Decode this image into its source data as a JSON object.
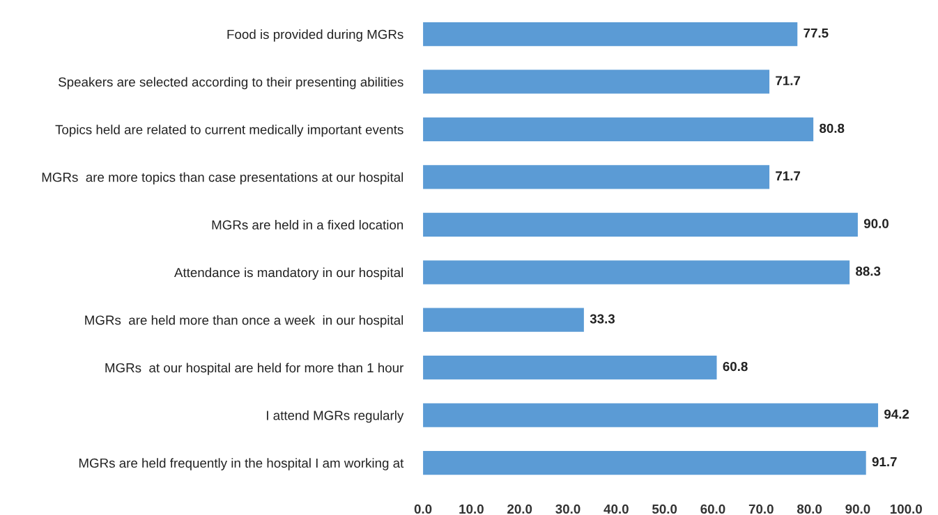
{
  "chart_data": {
    "type": "bar",
    "orientation": "horizontal",
    "categories": [
      "Food is provided during MGRs",
      "Speakers are selected according to their presenting abilities",
      "Topics held are related to current medically important events",
      "MGRs  are more topics than case presentations at our hospital",
      "MGRs are held in a fixed location",
      "Attendance is mandatory in our hospital",
      "MGRs  are held more than once a week  in our hospital",
      "MGRs  at our hospital are held for more than 1 hour",
      "I attend MGRs regularly",
      "MGRs are held frequently in the hospital I am working at"
    ],
    "values": [
      77.5,
      71.7,
      80.8,
      71.7,
      90.0,
      88.3,
      33.3,
      60.8,
      94.2,
      91.7
    ],
    "value_labels": [
      "77.5",
      "71.7",
      "80.8",
      "71.7",
      "90.0",
      "88.3",
      "33.3",
      "60.8",
      "94.2",
      "91.7"
    ],
    "color": "#5b9bd5",
    "xlim": [
      0,
      100
    ],
    "xticks": [
      {
        "value": 0,
        "label": "0.0"
      },
      {
        "value": 10,
        "label": "10.0"
      },
      {
        "value": 20,
        "label": "20.0"
      },
      {
        "value": 30,
        "label": "30.0"
      },
      {
        "value": 40,
        "label": "40.0"
      },
      {
        "value": 50,
        "label": "50.0"
      },
      {
        "value": 60,
        "label": "60.0"
      },
      {
        "value": 70,
        "label": "70.0"
      },
      {
        "value": 80,
        "label": "80.0"
      },
      {
        "value": 90,
        "label": "90.0"
      },
      {
        "value": 100,
        "label": "100.0"
      }
    ],
    "grid": false,
    "legend": false
  }
}
